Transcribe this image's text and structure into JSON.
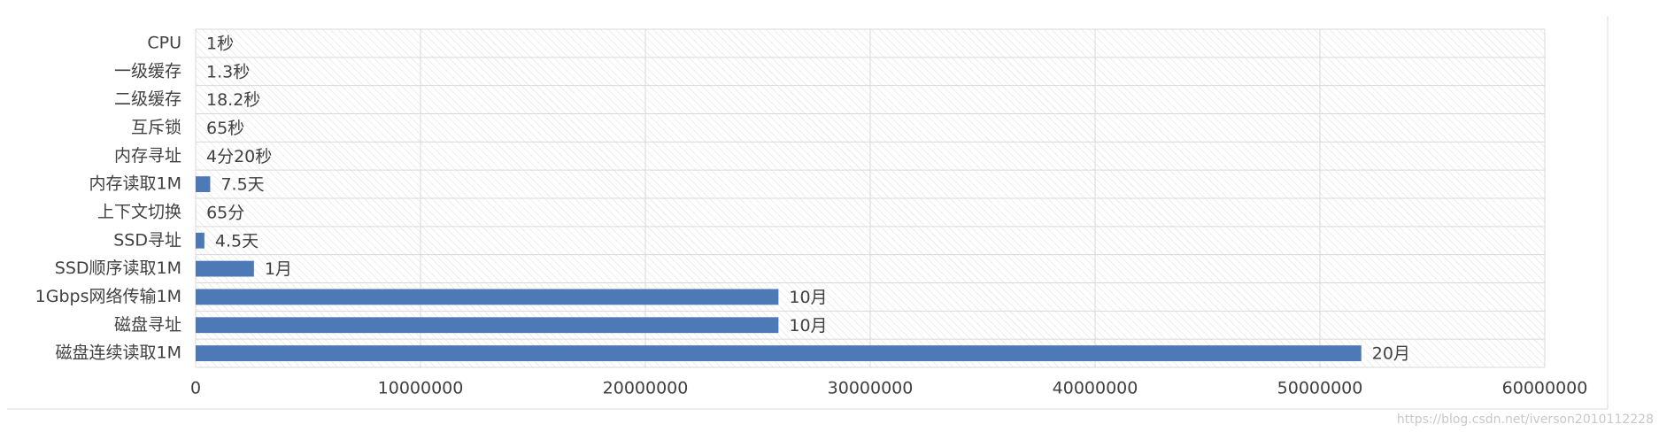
{
  "chart_data": {
    "type": "bar",
    "orientation": "horizontal",
    "categories": [
      "CPU",
      "一级缓存",
      "二级缓存",
      "互斥锁",
      "内存寻址",
      "内存读取1M",
      "上下文切换",
      "SSD寻址",
      "SSD顺序读取1M",
      "1Gbps网络传输1M",
      "磁盘寻址",
      "磁盘连续读取1M"
    ],
    "values": [
      1,
      1.3,
      18.2,
      65,
      260,
      648000,
      3900,
      388800,
      2592000,
      25920000,
      25920000,
      51840000
    ],
    "value_labels": [
      "1秒",
      "1.3秒",
      "18.2秒",
      "65秒",
      "4分20秒",
      "7.5天",
      "65分",
      "4.5天",
      "1月",
      "10月",
      "10月",
      "20月"
    ],
    "color": "#4e79b7",
    "xlim": [
      0,
      60000000
    ],
    "xticks": [
      0,
      10000000,
      20000000,
      30000000,
      40000000,
      50000000,
      60000000
    ],
    "grid": true,
    "watermark": "https://blog.csdn.net/iverson2010112228"
  }
}
